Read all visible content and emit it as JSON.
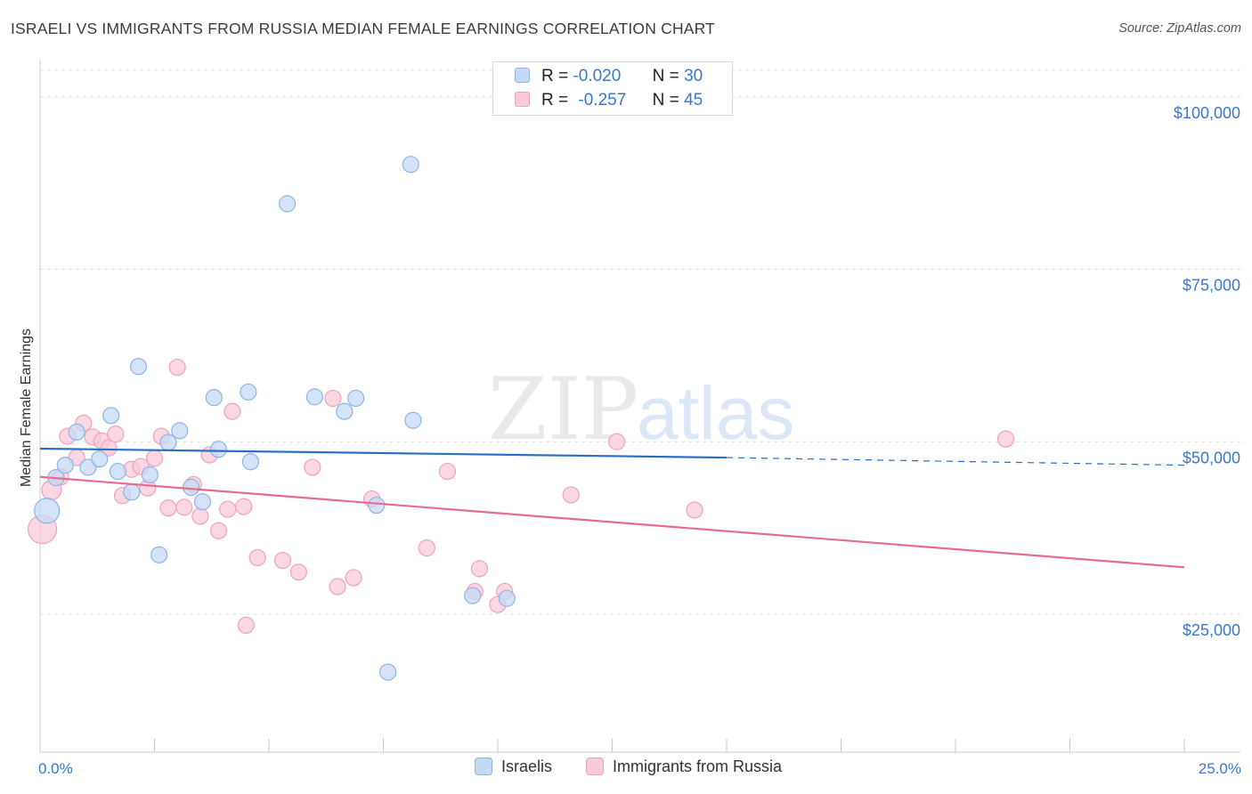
{
  "title": "ISRAELI VS IMMIGRANTS FROM RUSSIA MEDIAN FEMALE EARNINGS CORRELATION CHART",
  "source": "Source: ZipAtlas.com",
  "watermark": {
    "zip": "ZIP",
    "atlas": "atlas"
  },
  "colors": {
    "israelis_fill": "#c5d9f4",
    "israelis_stroke": "#8fb4e3",
    "israelis_line": "#2a6fc7",
    "russia_fill": "#f9cad9",
    "russia_stroke": "#eea3bd",
    "russia_line": "#e56b97",
    "accent_text": "#3a78c8"
  },
  "legend": {
    "rows": [
      {
        "r_label": "R =",
        "r_value": "-0.020",
        "n_label": "N =",
        "n_value": "30"
      },
      {
        "r_label": "R =",
        "r_value": "-0.257",
        "n_label": "N =",
        "n_value": "45"
      }
    ]
  },
  "bottom_legend": {
    "israelis": "Israelis",
    "russia": "Immigrants from Russia"
  },
  "chart_data": {
    "type": "scatter",
    "title": "ISRAELI VS IMMIGRANTS FROM RUSSIA MEDIAN FEMALE EARNINGS CORRELATION CHART",
    "xlabel": "",
    "ylabel": "Median Female Earnings",
    "xlim": [
      0,
      25
    ],
    "ylim": [
      5000,
      105000
    ],
    "x_tick_labels": [
      "0.0%",
      "25.0%"
    ],
    "y_ticks": [
      25000,
      50000,
      75000,
      100000
    ],
    "y_tick_labels": [
      "$25,000",
      "$50,000",
      "$75,000",
      "$100,000"
    ],
    "grid": true,
    "series": [
      {
        "name": "Israelis",
        "r": -0.02,
        "n": 30,
        "trend": {
          "x0": 0,
          "y0": 49000,
          "x1": 15,
          "y1": 47700,
          "dash_x1": 25,
          "dash_y1": 46600
        },
        "points": [
          [
            0.15,
            40000,
            14
          ],
          [
            0.35,
            44800,
            9
          ],
          [
            0.55,
            46600,
            9
          ],
          [
            0.8,
            51400,
            9
          ],
          [
            1.05,
            46300,
            9
          ],
          [
            1.3,
            47500,
            9
          ],
          [
            1.55,
            53800,
            9
          ],
          [
            1.7,
            45700,
            9
          ],
          [
            2.0,
            42700,
            9
          ],
          [
            2.15,
            60900,
            9
          ],
          [
            2.4,
            45200,
            9
          ],
          [
            2.6,
            33600,
            9
          ],
          [
            2.8,
            49900,
            9
          ],
          [
            3.05,
            51600,
            9
          ],
          [
            3.3,
            43400,
            9
          ],
          [
            3.55,
            41300,
            9
          ],
          [
            3.8,
            56400,
            9
          ],
          [
            3.9,
            48900,
            9
          ],
          [
            4.55,
            57200,
            9
          ],
          [
            4.6,
            47100,
            9
          ],
          [
            5.4,
            84500,
            9
          ],
          [
            6.0,
            56500,
            9
          ],
          [
            6.65,
            54400,
            9
          ],
          [
            6.9,
            56300,
            9
          ],
          [
            7.35,
            40800,
            9
          ],
          [
            7.6,
            16600,
            9
          ],
          [
            8.1,
            90200,
            9
          ],
          [
            8.15,
            53100,
            9
          ],
          [
            9.45,
            27700,
            9
          ],
          [
            10.2,
            27300,
            9
          ]
        ]
      },
      {
        "name": "Immigrants from Russia",
        "r": -0.257,
        "n": 45,
        "trend": {
          "x0": 0,
          "y0": 44900,
          "x1": 25,
          "y1": 31800
        },
        "points": [
          [
            0.05,
            37300,
            16
          ],
          [
            0.25,
            43000,
            11
          ],
          [
            0.45,
            44900,
            9
          ],
          [
            0.6,
            50800,
            9
          ],
          [
            0.8,
            47700,
            9
          ],
          [
            0.95,
            52700,
            9
          ],
          [
            1.15,
            50700,
            9
          ],
          [
            1.35,
            50100,
            9
          ],
          [
            1.5,
            49100,
            9
          ],
          [
            1.65,
            51100,
            9
          ],
          [
            1.8,
            42200,
            9
          ],
          [
            2.0,
            46000,
            9
          ],
          [
            2.2,
            46400,
            9
          ],
          [
            2.35,
            43300,
            9
          ],
          [
            2.5,
            47600,
            9
          ],
          [
            2.65,
            50800,
            9
          ],
          [
            2.8,
            40400,
            9
          ],
          [
            3.0,
            60800,
            9
          ],
          [
            3.15,
            40500,
            9
          ],
          [
            3.35,
            43800,
            9
          ],
          [
            3.5,
            39200,
            9
          ],
          [
            3.7,
            48100,
            9
          ],
          [
            3.9,
            37100,
            9
          ],
          [
            4.1,
            40200,
            9
          ],
          [
            4.2,
            54400,
            9
          ],
          [
            4.45,
            40600,
            9
          ],
          [
            4.5,
            23400,
            9
          ],
          [
            4.75,
            33200,
            9
          ],
          [
            5.3,
            32800,
            9
          ],
          [
            5.65,
            31100,
            9
          ],
          [
            5.95,
            46300,
            9
          ],
          [
            6.4,
            56300,
            9
          ],
          [
            6.5,
            29000,
            9
          ],
          [
            6.85,
            30300,
            9
          ],
          [
            7.25,
            41700,
            9
          ],
          [
            8.45,
            34600,
            9
          ],
          [
            8.9,
            45700,
            9
          ],
          [
            9.5,
            28300,
            9
          ],
          [
            9.6,
            31600,
            9
          ],
          [
            10.0,
            26400,
            9
          ],
          [
            10.15,
            28300,
            9
          ],
          [
            11.6,
            42300,
            9
          ],
          [
            12.6,
            50000,
            9
          ],
          [
            14.3,
            40100,
            9
          ],
          [
            21.1,
            50400,
            9
          ]
        ]
      }
    ]
  }
}
